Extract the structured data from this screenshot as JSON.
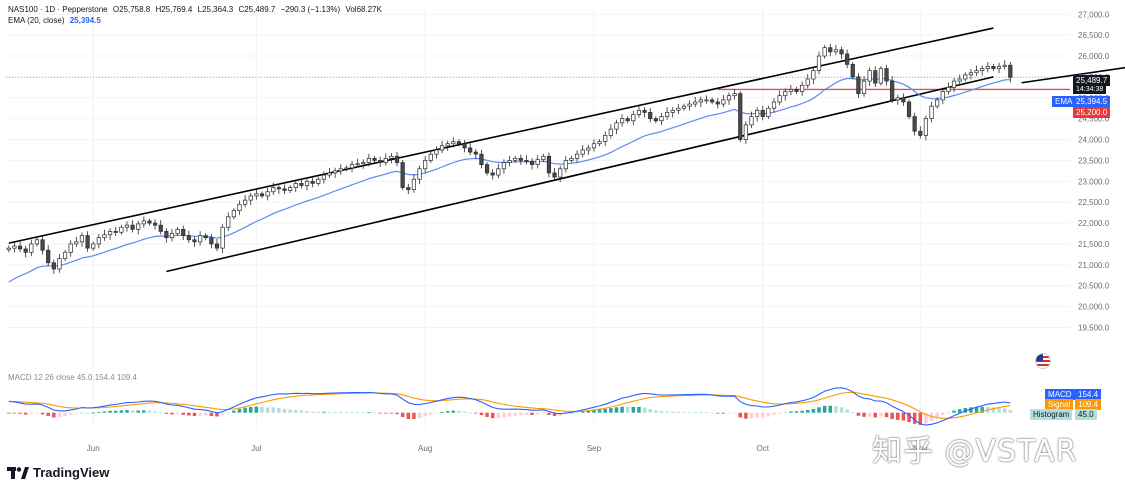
{
  "header": {
    "symbol": "NAS100 · 1D · Pepperstone",
    "open_label": "O",
    "open": "25,758.8",
    "high_label": "H",
    "high": "25,769.4",
    "low_label": "L",
    "low": "25,364.3",
    "close_label": "C",
    "close": "25,489.7",
    "change": "−290.3 (−1.13%)",
    "vol_label": "Vol",
    "vol": "68.27K",
    "ema_label": "EMA (20, close)",
    "ema_value": "25,394.5"
  },
  "price_tags": {
    "last_price": "25,489.7",
    "countdown": "14:34:38",
    "ema_label": "EMA",
    "ema_value": "25,394.5",
    "level": "25,200.0"
  },
  "macd_tags": {
    "macd_label": "MACD",
    "macd_value": "154.4",
    "signal_label": "Signal",
    "signal_value": "109.4",
    "hist_label": "Histogram",
    "hist_value": "45.0"
  },
  "macd_header": "MACD 12 26 close 45.0 154.4 109.4",
  "watermark": "知乎 @VSTAR",
  "logo_text": "TradingView",
  "colors": {
    "up": "#ffffff",
    "down": "#4a4a4a",
    "candle_border": "#2a2a2a",
    "ema": "#5b8def",
    "channel": "#000000",
    "level_line": "#e05252",
    "macd": "#2962ff",
    "signal": "#ff9800",
    "hist_pos": "#26a69a",
    "hist_pos_light": "#b2dfdb",
    "hist_neg": "#ef5350",
    "hist_neg_light": "#ffcdd2",
    "grid": "#f0f3fa"
  },
  "chart_data": {
    "type": "candlestick",
    "title": "NAS100 · 1D · Pepperstone",
    "x_ticks": [
      "Jun",
      "Jul",
      "Aug",
      "Sep",
      "Oct",
      "Nov"
    ],
    "y_ticks": [
      "27,000.0",
      "26,500.0",
      "26,000.0",
      "25,500.0",
      "25,000.0",
      "24,500.0",
      "24,000.0",
      "23,500.0",
      "23,000.0",
      "22,500.0",
      "22,000.0",
      "21,500.0",
      "21,000.0",
      "20,500.0",
      "20,000.0",
      "19,500.0"
    ],
    "ylim": [
      19200,
      27150
    ],
    "close_series": [
      21400,
      21450,
      21380,
      21300,
      21500,
      21600,
      21350,
      21050,
      20900,
      21150,
      21300,
      21500,
      21550,
      21700,
      21400,
      21500,
      21650,
      21720,
      21800,
      21780,
      21900,
      21950,
      21850,
      21980,
      22050,
      22000,
      21950,
      21800,
      21650,
      21750,
      21850,
      21700,
      21600,
      21550,
      21700,
      21650,
      21500,
      21400,
      21900,
      22150,
      22300,
      22450,
      22550,
      22650,
      22700,
      22650,
      22750,
      22850,
      22820,
      22780,
      22850,
      22950,
      22900,
      23000,
      22950,
      23050,
      23150,
      23200,
      23250,
      23300,
      23320,
      23400,
      23420,
      23450,
      23550,
      23500,
      23450,
      23550,
      23600,
      23450,
      22850,
      22800,
      23050,
      23300,
      23500,
      23650,
      23750,
      23850,
      23900,
      23950,
      23900,
      23800,
      23700,
      23650,
      23400,
      23200,
      23150,
      23300,
      23450,
      23500,
      23550,
      23500,
      23480,
      23400,
      23520,
      23600,
      23200,
      23100,
      23300,
      23500,
      23550,
      23650,
      23750,
      23800,
      23900,
      23950,
      24100,
      24250,
      24400,
      24500,
      24450,
      24600,
      24700,
      24650,
      24500,
      24450,
      24550,
      24650,
      24700,
      24750,
      24800,
      24850,
      24900,
      24950,
      24950,
      24900,
      24850,
      24950,
      25050,
      25100,
      24000,
      24350,
      24550,
      24700,
      24550,
      24750,
      24900,
      25050,
      25150,
      25200,
      25150,
      25300,
      25450,
      25650,
      26000,
      26200,
      26100,
      26150,
      26050,
      25800,
      25500,
      25100,
      25400,
      25650,
      25350,
      25700,
      25400,
      24950,
      25000,
      24900,
      24550,
      24200,
      24100,
      24500,
      24800,
      24950,
      25150,
      25250,
      25400,
      25450,
      25550,
      25600,
      25650,
      25700,
      25750,
      25700,
      25750,
      25780,
      25489.7
    ],
    "ema_series_note": "EMA (20, close)",
    "ema_last": 25394.5,
    "level_line": 25200.0,
    "channel": {
      "upper": [
        {
          "x": 0,
          "y": 21520
        },
        {
          "x": 175,
          "y": 26670
        }
      ],
      "lower": [
        {
          "x": 28,
          "y": 20840
        },
        {
          "x": 175,
          "y": 25500
        }
      ],
      "upper_short": [
        {
          "x": 180,
          "y": 25360
        },
        {
          "x": 210,
          "y": 25950
        }
      ]
    },
    "macd": {
      "ylim": [
        -250,
        600
      ],
      "macd_last": 154.4,
      "signal_last": 109.4,
      "histogram_last": 45.0
    },
    "grid": true,
    "legend": "top-left"
  }
}
